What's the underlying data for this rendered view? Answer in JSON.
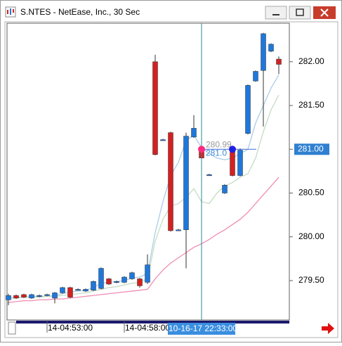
{
  "window": {
    "title": "S.NTES - NetEase, Inc., 30 Sec"
  },
  "chart_data": {
    "type": "candlestick",
    "categories": [
      null,
      null,
      null,
      null,
      null,
      "14-04:53:00",
      null,
      null,
      null,
      null,
      null,
      null,
      null,
      null,
      null,
      "14-04:58:00",
      null,
      null,
      null,
      null,
      null,
      null,
      null,
      null,
      null,
      null,
      null,
      null,
      null,
      null,
      null,
      null,
      null,
      null,
      null,
      null
    ],
    "open": [
      279.28,
      279.33,
      279.34,
      279.3,
      279.32,
      279.33,
      279.3,
      279.36,
      279.42,
      279.4,
      279.38,
      279.39,
      279.41,
      279.52,
      279.48,
      279.48,
      279.52,
      279.52,
      279.48,
      282.0,
      281.11,
      281.19,
      280.08,
      280.08,
      281.14,
      281.0,
      280.71,
      null,
      280.5,
      280.99,
      280.7,
      281.18,
      281.78,
      281.9,
      282.12,
      282.03
    ],
    "high": [
      279.35,
      279.34,
      279.35,
      279.35,
      279.34,
      279.35,
      279.37,
      279.43,
      279.43,
      279.41,
      279.41,
      279.5,
      279.65,
      279.53,
      279.5,
      279.55,
      279.6,
      279.53,
      279.8,
      282.08,
      281.12,
      281.2,
      280.09,
      281.19,
      281.39,
      281.18,
      280.72,
      null,
      280.6,
      281.01,
      281.01,
      281.74,
      281.9,
      282.33,
      282.21,
      282.06
    ],
    "low": [
      279.22,
      279.29,
      279.3,
      279.29,
      279.31,
      279.32,
      279.24,
      279.35,
      279.3,
      279.39,
      279.37,
      279.38,
      279.4,
      279.45,
      279.47,
      279.47,
      279.51,
      279.42,
      279.46,
      280.93,
      281.1,
      280.06,
      280.07,
      279.64,
      281.13,
      280.53,
      280.7,
      null,
      280.49,
      280.69,
      280.69,
      281.17,
      281.77,
      281.26,
      282.11,
      281.86
    ],
    "close": [
      279.33,
      279.3,
      279.31,
      279.34,
      279.33,
      279.34,
      279.36,
      279.42,
      279.31,
      279.4,
      279.4,
      279.49,
      279.64,
      279.46,
      279.49,
      279.54,
      279.59,
      279.44,
      279.68,
      280.94,
      281.11,
      280.07,
      280.08,
      281.15,
      281.24,
      280.9,
      280.71,
      null,
      280.59,
      280.7,
      280.99,
      281.73,
      281.89,
      282.32,
      282.2,
      281.97
    ],
    "up_color": "#1e78dc",
    "down_color": "#d42020",
    "series": [
      {
        "color": "#a9cde8",
        "values": [
          279.3,
          279.31,
          279.31,
          279.32,
          279.32,
          279.32,
          279.33,
          279.35,
          279.37,
          279.38,
          279.39,
          279.42,
          279.47,
          279.48,
          279.49,
          279.5,
          279.53,
          279.54,
          279.58,
          280.05,
          280.4,
          280.7,
          280.85,
          281.1,
          281.16,
          281.02,
          280.95,
          280.9,
          280.88,
          280.9,
          280.95,
          281.0,
          281.3,
          281.5,
          281.7,
          281.85
        ]
      },
      {
        "color": "#c5dcc5",
        "values": [
          279.3,
          279.3,
          279.31,
          279.31,
          279.31,
          279.32,
          279.32,
          279.33,
          279.34,
          279.35,
          279.36,
          279.38,
          279.4,
          279.42,
          279.43,
          279.45,
          279.47,
          279.48,
          279.52,
          279.95,
          280.2,
          280.35,
          280.38,
          280.45,
          280.55,
          280.4,
          280.38,
          280.5,
          280.58,
          280.62,
          280.68,
          280.72,
          280.9,
          281.2,
          281.45,
          281.62
        ]
      },
      {
        "color": "#f08cb4",
        "values": [
          279.25,
          279.26,
          279.27,
          279.27,
          279.28,
          279.28,
          279.29,
          279.29,
          279.3,
          279.31,
          279.32,
          279.33,
          279.34,
          279.35,
          279.36,
          279.37,
          279.38,
          279.39,
          279.4,
          279.52,
          279.62,
          279.7,
          279.76,
          279.82,
          279.88,
          279.92,
          279.97,
          280.03,
          280.08,
          280.14,
          280.2,
          280.28,
          280.38,
          280.48,
          280.58,
          280.68
        ]
      }
    ],
    "ylim": [
      279.05,
      282.44
    ],
    "yticks": [
      {
        "value": 279.5,
        "label": "279.50"
      },
      {
        "value": 280,
        "label": "280.00"
      },
      {
        "value": 280.5,
        "label": "280.50"
      },
      {
        "value": 281,
        "label": "281.00"
      },
      {
        "value": 281.5,
        "label": "281.50"
      },
      {
        "value": 282,
        "label": "282.00"
      }
    ],
    "crosshair_price": {
      "value": 281,
      "label": "281.00"
    },
    "crosshair_time": "10-16-17 22:33:00",
    "annotations": [
      "280.99",
      "281.0"
    ]
  }
}
